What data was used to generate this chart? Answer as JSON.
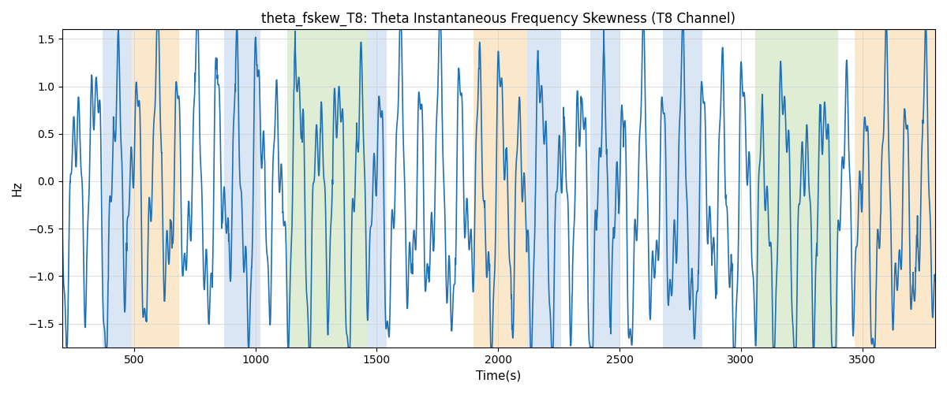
{
  "title": "theta_fskew_T8: Theta Instantaneous Frequency Skewness (T8 Channel)",
  "xlabel": "Time(s)",
  "ylabel": "Hz",
  "xlim": [
    205,
    3800
  ],
  "ylim": [
    -1.75,
    1.6
  ],
  "yticks": [
    -1.5,
    -1.0,
    -0.5,
    0.0,
    0.5,
    1.0,
    1.5
  ],
  "xticks": [
    500,
    1000,
    1500,
    2000,
    2500,
    3000,
    3500
  ],
  "line_color": "#2070b4",
  "line_width": 1.2,
  "bg_color": "white",
  "bands": [
    {
      "xmin": 370,
      "xmax": 490,
      "color": "#adc8e8",
      "alpha": 0.45
    },
    {
      "xmin": 490,
      "xmax": 685,
      "color": "#f9d5a0",
      "alpha": 0.55
    },
    {
      "xmin": 870,
      "xmax": 1020,
      "color": "#adc8e8",
      "alpha": 0.45
    },
    {
      "xmin": 1130,
      "xmax": 1460,
      "color": "#b8d8a0",
      "alpha": 0.45
    },
    {
      "xmin": 1460,
      "xmax": 1540,
      "color": "#adc8e8",
      "alpha": 0.45
    },
    {
      "xmin": 1900,
      "xmax": 2120,
      "color": "#f9d5a0",
      "alpha": 0.55
    },
    {
      "xmin": 2120,
      "xmax": 2260,
      "color": "#adc8e8",
      "alpha": 0.45
    },
    {
      "xmin": 2380,
      "xmax": 2500,
      "color": "#adc8e8",
      "alpha": 0.45
    },
    {
      "xmin": 2680,
      "xmax": 2840,
      "color": "#adc8e8",
      "alpha": 0.45
    },
    {
      "xmin": 3060,
      "xmax": 3400,
      "color": "#b8d8a0",
      "alpha": 0.45
    },
    {
      "xmin": 3470,
      "xmax": 3610,
      "color": "#adc8e8",
      "alpha": 0.0
    },
    {
      "xmin": 3470,
      "xmax": 3800,
      "color": "#f9d5a0",
      "alpha": 0.55
    }
  ],
  "seed": 12,
  "n_points": 3600,
  "t_start": 205,
  "t_end": 3800
}
